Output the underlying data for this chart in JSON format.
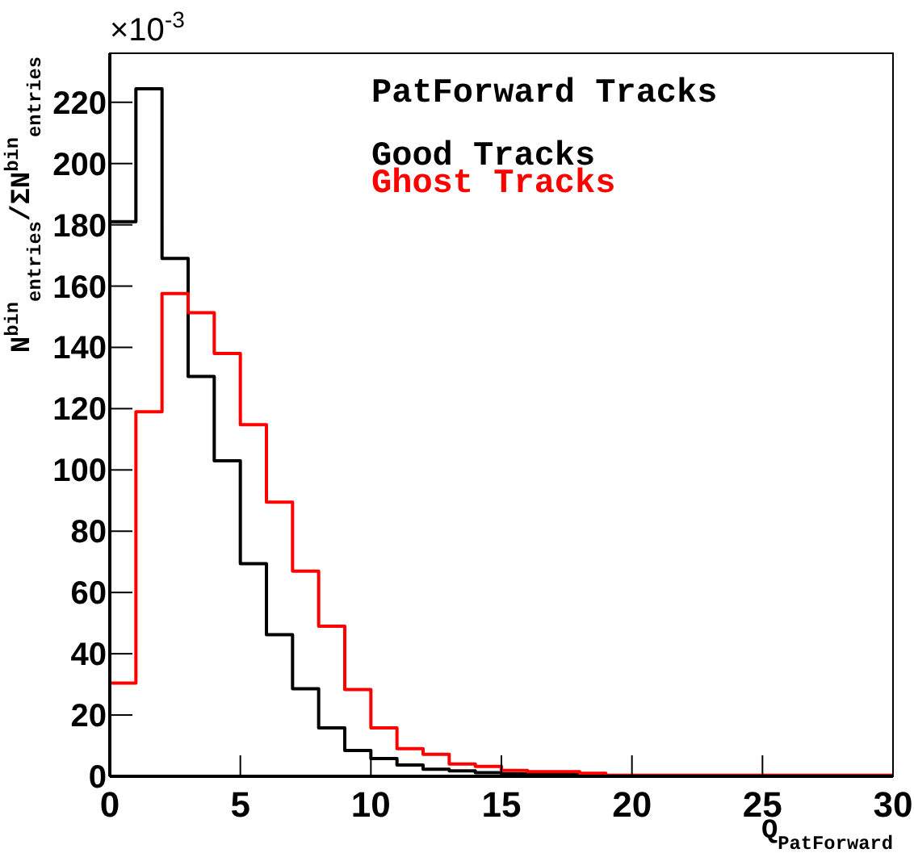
{
  "chart_data": {
    "type": "histogram",
    "title": "PatForward Tracks",
    "xlabel": "Q$_{PatForward}$",
    "ylabel": "N$^{bin}$$_{entries}$/ΣN$^{bin}$$_{entries}$",
    "annotations": [
      "×10$^{-3}$"
    ],
    "bins": [
      0,
      1,
      2,
      3,
      4,
      5,
      6,
      7,
      8,
      9,
      10,
      11,
      12,
      13,
      14,
      15,
      16,
      17,
      18,
      19,
      20,
      21,
      22,
      23,
      24,
      25,
      26,
      27,
      28,
      29,
      30
    ],
    "series": [
      {
        "name": "Good Tracks",
        "color": "#000000",
        "values": [
          181,
          224.4,
          169,
          130.5,
          103,
          69.4,
          46.2,
          28.6,
          15.8,
          8.4,
          5.8,
          3.7,
          2.3,
          1.8,
          1.2,
          0.8,
          0.6,
          0.5,
          0.3,
          0.2,
          0.2,
          0.2,
          0.1,
          0.2,
          0.1,
          0.1,
          0.1,
          0.1,
          0.1,
          0.1
        ]
      },
      {
        "name": "Ghost Tracks",
        "color": "#ff0000",
        "values": [
          30.4,
          119,
          157.6,
          151.3,
          138,
          114.8,
          89.5,
          67,
          49,
          28.3,
          15.8,
          9,
          7.2,
          4,
          3.2,
          1.9,
          1.5,
          1.5,
          1,
          0.3,
          0.3,
          0.3,
          0.3,
          0.3,
          0.3,
          0.3,
          0.3,
          0.3,
          0.3,
          0.3
        ]
      }
    ],
    "xlim": [
      0,
      30
    ],
    "ylim": [
      0,
      236
    ],
    "xticks": [
      0,
      5,
      10,
      15,
      20,
      25,
      30
    ],
    "yticks": [
      0,
      20,
      40,
      60,
      80,
      100,
      120,
      140,
      160,
      180,
      200,
      220
    ],
    "legend": "top right",
    "grid": false
  }
}
